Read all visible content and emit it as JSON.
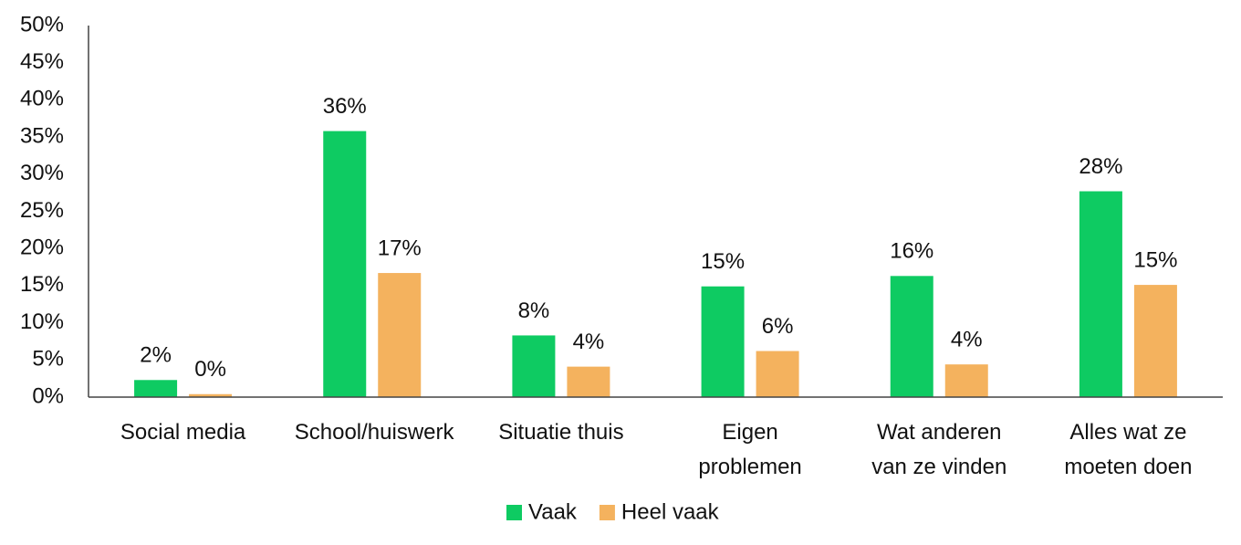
{
  "chart_data": {
    "type": "bar",
    "categories": [
      "Social media",
      "School/huiswerk",
      "Situatie thuis",
      "Eigen problemen",
      "Wat anderen van ze vinden",
      "Alles wat ze moeten doen"
    ],
    "series": [
      {
        "name": "Vaak",
        "color": "#0ecb62",
        "values": [
          2.3,
          35.8,
          8.3,
          14.9,
          16.3,
          27.7
        ],
        "value_labels": [
          "2%",
          "36%",
          "8%",
          "15%",
          "16%",
          "28%"
        ]
      },
      {
        "name": "Heel vaak",
        "color": "#f4b25e",
        "values": [
          0.4,
          16.7,
          4.1,
          6.2,
          4.4,
          15.1
        ],
        "value_labels": [
          "0%",
          "17%",
          "4%",
          "6%",
          "4%",
          "15%"
        ]
      }
    ],
    "ylim": [
      0,
      50
    ],
    "yticks": [
      {
        "value": 0,
        "label": "0%"
      },
      {
        "value": 5,
        "label": "5%"
      },
      {
        "value": 10,
        "label": "10%"
      },
      {
        "value": 15,
        "label": "15%"
      },
      {
        "value": 20,
        "label": "20%"
      },
      {
        "value": 25,
        "label": "25%"
      },
      {
        "value": 30,
        "label": "30%"
      },
      {
        "value": 35,
        "label": "35%"
      },
      {
        "value": 40,
        "label": "40%"
      },
      {
        "value": 45,
        "label": "45%"
      },
      {
        "value": 50,
        "label": "50%"
      }
    ],
    "grid": false,
    "legend": "bottom"
  }
}
